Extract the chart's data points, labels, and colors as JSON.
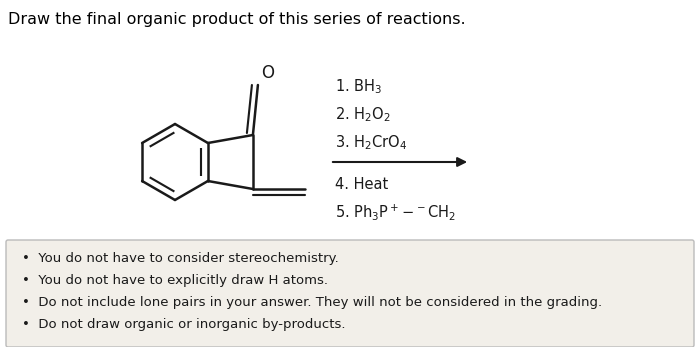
{
  "title": "Draw the final organic product of this series of reactions.",
  "title_fontsize": 11.5,
  "title_color": "#000000",
  "background_color": "#ffffff",
  "box_color": "#f2efe9",
  "box_edge_color": "#bbbbbb",
  "reagents_above": [
    "1. BH$_3$",
    "2. H$_2$O$_2$",
    "3. H$_2$CrO$_4$"
  ],
  "reagents_below": [
    "4. Heat",
    "5. Ph$_3$P$^+$$\\!-\\!$$^-$CH$_2$"
  ],
  "bullet_points": [
    "You do not have to consider stereochemistry.",
    "You do not have to explicitly draw H atoms.",
    "Do not include lone pairs in your answer. They will not be considered in the grading.",
    "Do not draw organic or inorganic by-products."
  ],
  "bullet_fontsize": 9.5,
  "reagent_fontsize": 10.5,
  "line_color": "#1a1a1a",
  "line_width": 1.8
}
